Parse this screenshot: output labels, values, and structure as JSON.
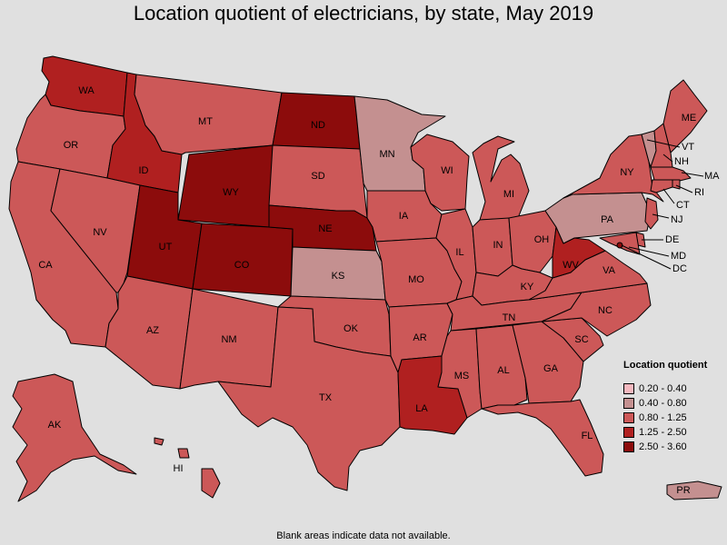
{
  "title": "Location quotient of electricians, by state, May 2019",
  "footnote": "Blank areas indicate data not available.",
  "legend": {
    "title": "Location quotient",
    "items": [
      {
        "range": "0.20 - 0.40",
        "color": "#f5b8bf"
      },
      {
        "range": "0.40 - 0.80",
        "color": "#c49090"
      },
      {
        "range": "0.80 - 1.25",
        "color": "#cc5858"
      },
      {
        "range": "1.25 - 2.50",
        "color": "#b02020"
      },
      {
        "range": "2.50 - 3.60",
        "color": "#8c0c0c"
      }
    ]
  },
  "states": [
    {
      "abbr": "WA",
      "band": "1.25 - 2.50"
    },
    {
      "abbr": "OR",
      "band": "0.80 - 1.25"
    },
    {
      "abbr": "CA",
      "band": "0.80 - 1.25"
    },
    {
      "abbr": "ID",
      "band": "1.25 - 2.50"
    },
    {
      "abbr": "NV",
      "band": "0.80 - 1.25"
    },
    {
      "abbr": "MT",
      "band": "0.80 - 1.25"
    },
    {
      "abbr": "WY",
      "band": "2.50 - 3.60"
    },
    {
      "abbr": "UT",
      "band": "2.50 - 3.60"
    },
    {
      "abbr": "CO",
      "band": "2.50 - 3.60"
    },
    {
      "abbr": "AZ",
      "band": "0.80 - 1.25"
    },
    {
      "abbr": "NM",
      "band": "0.80 - 1.25"
    },
    {
      "abbr": "ND",
      "band": "2.50 - 3.60"
    },
    {
      "abbr": "SD",
      "band": "0.80 - 1.25"
    },
    {
      "abbr": "NE",
      "band": "2.50 - 3.60"
    },
    {
      "abbr": "KS",
      "band": "0.40 - 0.80"
    },
    {
      "abbr": "OK",
      "band": "0.80 - 1.25"
    },
    {
      "abbr": "TX",
      "band": "0.80 - 1.25"
    },
    {
      "abbr": "MN",
      "band": "0.40 - 0.80"
    },
    {
      "abbr": "IA",
      "band": "0.80 - 1.25"
    },
    {
      "abbr": "MO",
      "band": "0.80 - 1.25"
    },
    {
      "abbr": "AR",
      "band": "0.80 - 1.25"
    },
    {
      "abbr": "LA",
      "band": "1.25 - 2.50"
    },
    {
      "abbr": "WI",
      "band": "0.80 - 1.25"
    },
    {
      "abbr": "IL",
      "band": "0.80 - 1.25"
    },
    {
      "abbr": "MI",
      "band": "0.80 - 1.25"
    },
    {
      "abbr": "IN",
      "band": "0.80 - 1.25"
    },
    {
      "abbr": "OH",
      "band": "0.80 - 1.25"
    },
    {
      "abbr": "KY",
      "band": "0.80 - 1.25"
    },
    {
      "abbr": "TN",
      "band": "0.80 - 1.25"
    },
    {
      "abbr": "MS",
      "band": "0.80 - 1.25"
    },
    {
      "abbr": "AL",
      "band": "0.80 - 1.25"
    },
    {
      "abbr": "GA",
      "band": "0.80 - 1.25"
    },
    {
      "abbr": "FL",
      "band": "0.80 - 1.25"
    },
    {
      "abbr": "SC",
      "band": "0.80 - 1.25"
    },
    {
      "abbr": "NC",
      "band": "0.80 - 1.25"
    },
    {
      "abbr": "VA",
      "band": "0.80 - 1.25"
    },
    {
      "abbr": "WV",
      "band": "1.25 - 2.50"
    },
    {
      "abbr": "PA",
      "band": "0.40 - 0.80"
    },
    {
      "abbr": "NY",
      "band": "0.80 - 1.25"
    },
    {
      "abbr": "VT",
      "band": "0.40 - 0.80"
    },
    {
      "abbr": "NH",
      "band": "0.80 - 1.25"
    },
    {
      "abbr": "ME",
      "band": "0.80 - 1.25"
    },
    {
      "abbr": "MA",
      "band": "0.80 - 1.25"
    },
    {
      "abbr": "RI",
      "band": "0.80 - 1.25"
    },
    {
      "abbr": "CT",
      "band": "0.80 - 1.25"
    },
    {
      "abbr": "NJ",
      "band": "0.80 - 1.25"
    },
    {
      "abbr": "DE",
      "band": "0.80 - 1.25"
    },
    {
      "abbr": "MD",
      "band": "0.80 - 1.25"
    },
    {
      "abbr": "DC",
      "band": "2.50 - 3.60"
    },
    {
      "abbr": "AK",
      "band": "0.80 - 1.25"
    },
    {
      "abbr": "HI",
      "band": "0.80 - 1.25"
    },
    {
      "abbr": "PR",
      "band": "0.40 - 0.80"
    }
  ]
}
